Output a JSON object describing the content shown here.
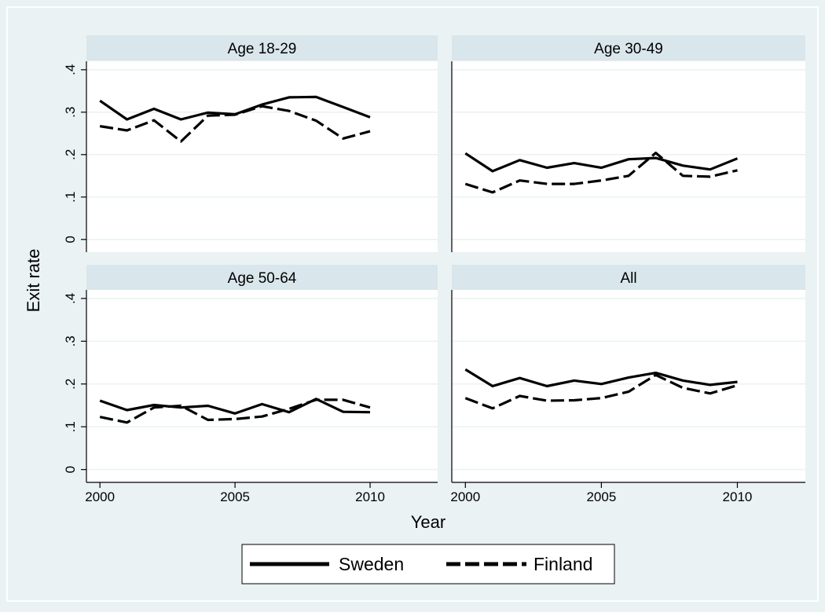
{
  "chart_data": {
    "type": "line",
    "facet_layout": "2x2",
    "x": [
      2000,
      2001,
      2002,
      2003,
      2004,
      2005,
      2006,
      2007,
      2008,
      2009,
      2010
    ],
    "xlabel": "Year",
    "ylabel": "Exit rate",
    "xlim": [
      1999.5,
      2012.5
    ],
    "ylim": [
      -0.03,
      0.42
    ],
    "xticks": [
      {
        "value": 2000,
        "label": "2000"
      },
      {
        "value": 2005,
        "label": "2005"
      },
      {
        "value": 2010,
        "label": "2010"
      }
    ],
    "yticks": [
      {
        "value": 0,
        "label": "0"
      },
      {
        "value": 0.1,
        "label": ".1"
      },
      {
        "value": 0.2,
        "label": ".2"
      },
      {
        "value": 0.3,
        "label": ".3"
      },
      {
        "value": 0.4,
        "label": ".4"
      }
    ],
    "grid": "horizontal",
    "legend_position": "bottom",
    "legend": [
      {
        "name": "Sweden",
        "style": "solid"
      },
      {
        "name": "Finland",
        "style": "dashed"
      }
    ],
    "background_color": "#eaf2f3",
    "plot_color": "#ffffff",
    "strip_color": "#d9e6eb",
    "line_color": "#000000",
    "panels": [
      {
        "title": "Age 18-29",
        "series": [
          {
            "name": "Sweden",
            "values": [
              0.327,
              0.283,
              0.308,
              0.283,
              0.299,
              0.295,
              0.318,
              0.335,
              0.336,
              0.312,
              0.288
            ]
          },
          {
            "name": "Finland",
            "values": [
              0.267,
              0.257,
              0.281,
              0.231,
              0.292,
              0.294,
              0.314,
              0.303,
              0.28,
              0.238,
              0.255
            ]
          }
        ]
      },
      {
        "title": "Age 30-49",
        "series": [
          {
            "name": "Sweden",
            "values": [
              0.203,
              0.161,
              0.187,
              0.169,
              0.18,
              0.169,
              0.189,
              0.192,
              0.174,
              0.165,
              0.191
            ]
          },
          {
            "name": "Finland",
            "values": [
              0.131,
              0.111,
              0.139,
              0.131,
              0.131,
              0.139,
              0.15,
              0.204,
              0.15,
              0.148,
              0.163
            ]
          }
        ]
      },
      {
        "title": "Age 50-64",
        "series": [
          {
            "name": "Sweden",
            "values": [
              0.161,
              0.139,
              0.151,
              0.145,
              0.149,
              0.131,
              0.153,
              0.134,
              0.165,
              0.135,
              0.134
            ]
          },
          {
            "name": "Finland",
            "values": [
              0.123,
              0.11,
              0.145,
              0.149,
              0.116,
              0.118,
              0.124,
              0.142,
              0.163,
              0.163,
              0.145
            ]
          }
        ]
      },
      {
        "title": "All",
        "series": [
          {
            "name": "Sweden",
            "values": [
              0.234,
              0.195,
              0.214,
              0.195,
              0.208,
              0.2,
              0.215,
              0.226,
              0.208,
              0.198,
              0.205
            ]
          },
          {
            "name": "Finland",
            "values": [
              0.167,
              0.143,
              0.172,
              0.161,
              0.162,
              0.167,
              0.182,
              0.221,
              0.191,
              0.178,
              0.197
            ]
          }
        ]
      }
    ]
  }
}
